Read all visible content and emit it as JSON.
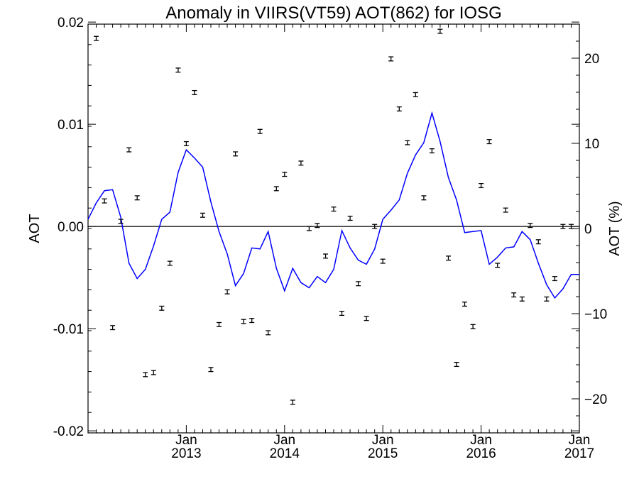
{
  "chart_data": {
    "type": "line",
    "title": "Anomaly in VIIRS(VT59) AOT(862) for IOSG",
    "ylabel": "AOT",
    "ylabel_right": "AOT (%)",
    "xlabel": "",
    "xlim": [
      2012.0,
      2017.0
    ],
    "ylim": [
      -0.0202,
      0.0198
    ],
    "ylim_right": [
      -24.0,
      24.0
    ],
    "y_ticks": [
      {
        "value": 0.02,
        "label": "0.02"
      },
      {
        "value": 0.01,
        "label": "0.01"
      },
      {
        "value": 0.0,
        "label": "0.00"
      },
      {
        "value": -0.01,
        "label": "-0.01"
      },
      {
        "value": -0.02,
        "label": "-0.02"
      }
    ],
    "y_right_ticks": [
      {
        "value": 20,
        "label": "20"
      },
      {
        "value": 10,
        "label": "10"
      },
      {
        "value": 0,
        "label": "0"
      },
      {
        "value": -10,
        "label": "−10"
      },
      {
        "value": -20,
        "label": "−20"
      }
    ],
    "x_ticks": [
      {
        "value": 2013.0,
        "month": "Jan",
        "year": "2013"
      },
      {
        "value": 2014.0,
        "month": "Jan",
        "year": "2014"
      },
      {
        "value": 2015.0,
        "month": "Jan",
        "year": "2015"
      },
      {
        "value": 2016.0,
        "month": "Jan",
        "year": "2016"
      },
      {
        "value": 2017.0,
        "month": "Jan",
        "year": "2017"
      }
    ],
    "series": [
      {
        "kind": "points_with_error_bars",
        "color": "#000000",
        "x": [
          2012.083,
          2012.167,
          2012.25,
          2012.333,
          2012.417,
          2012.5,
          2012.583,
          2012.667,
          2012.75,
          2012.833,
          2012.917,
          2013.0,
          2013.083,
          2013.167,
          2013.25,
          2013.333,
          2013.417,
          2013.5,
          2013.583,
          2013.667,
          2013.75,
          2013.833,
          2013.917,
          2014.0,
          2014.083,
          2014.167,
          2014.25,
          2014.333,
          2014.417,
          2014.5,
          2014.583,
          2014.667,
          2014.75,
          2014.833,
          2014.917,
          2015.0,
          2015.083,
          2015.167,
          2015.25,
          2015.333,
          2015.417,
          2015.5,
          2015.583,
          2015.667,
          2015.75,
          2015.833,
          2015.917,
          2016.0,
          2016.083,
          2016.167,
          2016.25,
          2016.333,
          2016.417,
          2016.5,
          2016.583,
          2016.667,
          2016.75,
          2016.833,
          2016.917
        ],
        "y": [
          0.0184,
          0.0025,
          -0.0099,
          0.0005,
          0.0075,
          0.0028,
          -0.0145,
          -0.0143,
          -0.008,
          -0.0036,
          0.0153,
          0.0081,
          0.0131,
          0.0011,
          -0.014,
          -0.0096,
          -0.0064,
          0.0071,
          -0.0093,
          -0.0092,
          0.0093,
          -0.0104,
          0.0037,
          0.0051,
          -0.0172,
          0.0062,
          -0.0002,
          0.0001,
          -0.0029,
          0.0017,
          -0.0085,
          0.0008,
          -0.0056,
          -0.009,
          0.0,
          -0.0034,
          0.0164,
          0.0115,
          0.0082,
          0.0129,
          0.0028,
          0.0074,
          0.0191,
          -0.0031,
          -0.0135,
          -0.0076,
          -0.0098,
          0.004,
          0.0083,
          -0.0038,
          0.0016,
          -0.0067,
          -0.0071,
          0.0001,
          -0.0015,
          -0.0071,
          -0.0051,
          0.0,
          0.0
        ],
        "error": 0.0002
      },
      {
        "kind": "smoothed_line",
        "color": "#0000ff",
        "x": [
          2012.0,
          2012.083,
          2012.167,
          2012.25,
          2012.333,
          2012.417,
          2012.5,
          2012.583,
          2012.667,
          2012.75,
          2012.833,
          2012.917,
          2013.0,
          2013.083,
          2013.167,
          2013.25,
          2013.333,
          2013.417,
          2013.5,
          2013.583,
          2013.667,
          2013.75,
          2013.833,
          2013.917,
          2014.0,
          2014.083,
          2014.167,
          2014.25,
          2014.333,
          2014.417,
          2014.5,
          2014.583,
          2014.667,
          2014.75,
          2014.833,
          2014.917,
          2015.0,
          2015.083,
          2015.167,
          2015.25,
          2015.333,
          2015.417,
          2015.5,
          2015.583,
          2015.667,
          2015.75,
          2015.833,
          2015.917,
          2016.0,
          2016.083,
          2016.167,
          2016.25,
          2016.333,
          2016.417,
          2016.5,
          2016.583,
          2016.667,
          2016.75,
          2016.833,
          2016.917,
          2017.0
        ],
        "y": [
          0.0007,
          0.0023,
          0.0035,
          0.0036,
          0.0009,
          -0.0036,
          -0.0051,
          -0.0042,
          -0.0019,
          0.0007,
          0.0014,
          0.0053,
          0.0075,
          0.0067,
          0.0058,
          0.0024,
          -0.0005,
          -0.0027,
          -0.0058,
          -0.0046,
          -0.0021,
          -0.0022,
          -0.0005,
          -0.0041,
          -0.0063,
          -0.0041,
          -0.0055,
          -0.006,
          -0.0049,
          -0.0055,
          -0.0042,
          -0.0004,
          -0.0021,
          -0.0033,
          -0.0037,
          -0.0022,
          0.0007,
          0.0016,
          0.0026,
          0.0052,
          0.007,
          0.0082,
          0.0111,
          0.0083,
          0.0048,
          0.0026,
          -0.0006,
          -0.0005,
          -0.0004,
          -0.0037,
          -0.003,
          -0.0021,
          -0.002,
          -0.0005,
          -0.0013,
          -0.0036,
          -0.0057,
          -0.007,
          -0.0061,
          -0.0047,
          -0.0047
        ]
      }
    ],
    "zero_line": true,
    "grid": false
  }
}
